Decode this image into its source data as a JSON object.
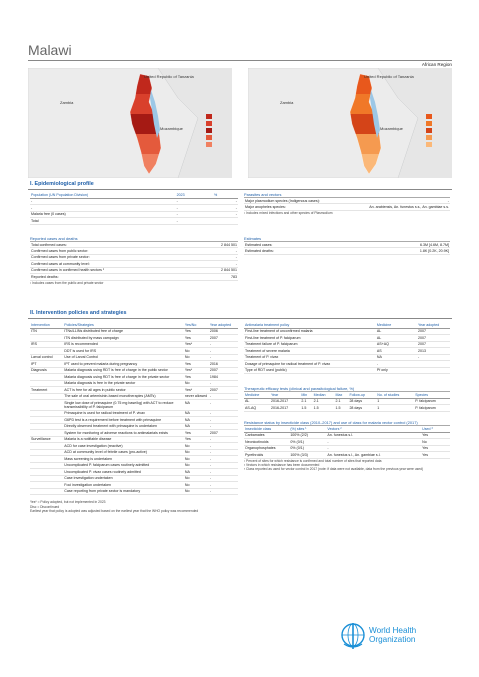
{
  "header": {
    "title": "Malawi",
    "region": "African Region"
  },
  "maps": [
    {
      "labels": [
        "United Republic of Tanzania",
        "Zambia",
        "Mozambique"
      ]
    },
    {
      "labels": [
        "United Republic of Tanzania",
        "Zambia",
        "Mozambique"
      ]
    }
  ],
  "epidemiological": {
    "title": "I. Epidemiological profile",
    "population": {
      "header": [
        "Population (UN Population Division)",
        "2023",
        "%"
      ],
      "rows": [
        [
          "-",
          "-",
          "-"
        ],
        [
          "-",
          "-",
          "-"
        ],
        [
          "Malaria free (0 cases)",
          "-",
          "-"
        ],
        [
          "Total",
          "-",
          null
        ]
      ]
    },
    "parasites": {
      "title": "Parasites and vectors",
      "rows": [
        [
          "Major plasmodium species (Indigenous cases):",
          "-"
        ],
        [
          "Major anopheles species:",
          "An. arabiensis, An. funestus s.s., An. gambiae s.s."
        ]
      ],
      "footnote": "¹ Includes mixed infections and other species of Plasmodium"
    },
    "reported": {
      "title": "Reported cases and deaths",
      "rows": [
        [
          "Total confirmed cases:",
          "2 844 501"
        ],
        [
          "Confirmed cases from public sector:",
          "-"
        ],
        [
          "Confirmed cases from private sector:",
          "-"
        ],
        [
          "Confirmed cases at community level:",
          "-"
        ],
        [
          "Confirmed cases in confirmed health sectors ¹",
          "2 844 501"
        ],
        [
          "Reported deaths:",
          "783"
        ]
      ],
      "footnote": "¹ Includes cases from the public and private sector"
    },
    "estimates": {
      "title": "Estimates",
      "rows": [
        [
          "Estimated cases:",
          "6.3M [4.6M, 8.7M]"
        ],
        [
          "Estimated deaths:",
          "1.8K [0.2K, 20.9K]"
        ]
      ]
    }
  },
  "interventions": {
    "title": "II. Intervention policies and strategies",
    "policies": {
      "header": [
        "Intervention",
        "Policies/Strategies",
        "Yes/No",
        "Year adopted"
      ],
      "rows": [
        [
          "ITN",
          "ITNs/LLINs distributed free of charge",
          "Yes",
          "2006"
        ],
        [
          null,
          "ITN distributed by mass campaign",
          "Yes",
          "2007"
        ],
        [
          "IRS",
          "IRS is recommended",
          "Yes*",
          "-"
        ],
        [
          null,
          "DDT is used for IRS",
          "No",
          "-"
        ],
        [
          "Larval control",
          "Use of Larval Control",
          "No",
          "-"
        ],
        [
          "IPT",
          "IPT used to prevent malaria during pregnancy",
          "Yes",
          "2016"
        ],
        [
          "Diagnosis",
          "Malaria diagnosis using RDT is free of charge in the public sector",
          "Yes*",
          "2007"
        ],
        [
          null,
          "Malaria diagnosis using RDT is free of charge in the private sector",
          "Yes",
          "1984"
        ],
        [
          null,
          "Malaria diagnosis is free in the private sector",
          "No",
          "-"
        ],
        [
          "Treatment",
          "ACT is free for all ages in public sector",
          "Yes*",
          "2007"
        ],
        [
          null,
          "The sale of oral artemisinin-based monotherapies (AMTs)",
          "never allowed",
          "-"
        ],
        [
          null,
          "Single low dose of primaquine (0.75 mg base/kg) with ACT to reduce transmissibility of P. falciparum",
          "NA",
          "-"
        ],
        [
          null,
          "Primaquine is used for radical treatment of P. vivax",
          "NA",
          "-"
        ],
        [
          null,
          "G6PD test is a requirement before treatment with primaquine",
          "NA",
          "-"
        ],
        [
          null,
          "Directly observed treatment with primaquine is undertaken",
          "NA",
          "-"
        ],
        [
          null,
          "System for monitoring of adverse reactions to antimalarials exists",
          "Yes",
          "2007"
        ],
        [
          "Surveillance",
          "Malaria is a notifiable disease",
          "Yes",
          "-"
        ],
        [
          null,
          "ACD for case investigation (reactive)",
          "No",
          "-"
        ],
        [
          null,
          "ACD at community level of febrile cases (pro-active)",
          "No",
          "-"
        ],
        [
          null,
          "Mass screening is undertaken",
          "No",
          "-"
        ],
        [
          null,
          "Uncomplicated P. falciparum cases routinely admitted",
          "No",
          "-"
        ],
        [
          null,
          "Uncomplicated P. vivax cases routinely admitted",
          "NA",
          "-"
        ],
        [
          null,
          "Case investigation undertaken",
          "No",
          "-"
        ],
        [
          null,
          "Foci investigation undertaken",
          "No",
          "-"
        ],
        [
          null,
          "Case reporting from private sector is mandatory",
          "No",
          "-"
        ]
      ]
    },
    "footnotes": [
      "Yes* = Policy adopted, but not implemented in 2023",
      "Disc = Discontinued",
      "Earliest year that policy is adopted was adjusted based on the earliest year that the WHO policy was recommended"
    ],
    "treatment": {
      "header": [
        "Antimalaria treatment policy",
        "Medicine",
        "Year adopted"
      ],
      "rows": [
        [
          "First-line treatment of unconfirmed malaria",
          "AL",
          "2007"
        ],
        [
          "First-line treatment of P. falciparum",
          "AL",
          "2007"
        ],
        [
          "Treatment failure of P. falciparum",
          "AS+AQ",
          "2007"
        ],
        [
          "Treatment of severe malaria",
          "AS",
          "2013"
        ],
        [
          "Treatment of P. vivax",
          "NA",
          "-"
        ],
        [
          "Dosage of primaquine for radical treatment of P. vivax",
          "-",
          null
        ],
        [
          "Type of RDT used (public)",
          "Pf only",
          null
        ]
      ]
    },
    "efficacy": {
      "title": "Therapeutic efficacy tests (clinical and parasitological failure, %)",
      "header": [
        "Medicine",
        "Year",
        "Min",
        "Median",
        "Max",
        "Follow-up",
        "No. of studies",
        "Species"
      ],
      "rows": [
        [
          "AL",
          "2016-2017",
          "2.1",
          "2.1",
          "2.1",
          "28 days",
          "1",
          "P. falciparum"
        ],
        [
          "AS-AQ",
          "2016-2017",
          "1.5",
          "1.5",
          "1.5",
          "28 days",
          "1",
          "P. falciparum"
        ]
      ]
    },
    "resistance": {
      "title": "Resistance status by insecticide class (2010–2017) and use of class for malaria vector control (2017)",
      "header": [
        "Insecticide class",
        "(%) sites ¹",
        "Vectors ²",
        "Used ³"
      ],
      "rows": [
        [
          "Carbamates",
          "100% (2/2)",
          "An. funestus s.l.",
          "Yes"
        ],
        [
          "Neonicotinoids",
          "0% (0/1)",
          "-",
          "No"
        ],
        [
          "Organophosphates",
          "0% (0/1)",
          "-",
          "Yes"
        ],
        [
          "Pyrethroids",
          "100% (3/3)",
          "An. funestus s.l., An. gambiae s.l.",
          "Yes"
        ]
      ],
      "footnotes": [
        "¹ Percent of sites for which resistance is confirmed and total number of sites that reported data",
        "² Vectors in which resistance has been documented",
        "³ Class reported as used for vector control in 2017 (note: if data were not available, data from the previous year were used)"
      ]
    }
  },
  "logo": {
    "lines": [
      "World Health",
      "Organization"
    ]
  }
}
